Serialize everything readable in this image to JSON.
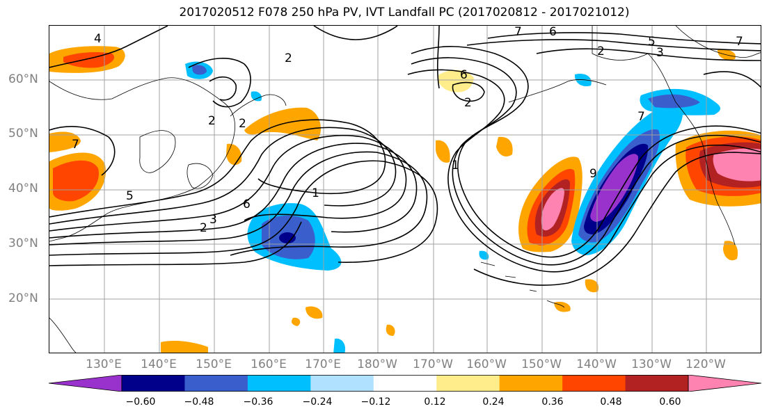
{
  "title": "2017020512 F078 250 hPa PV, IVT Landfall PC (2017020812 - 2017021012)",
  "lat_labels": [
    "60°N",
    "50°N",
    "40°N",
    "30°N",
    "20°N"
  ],
  "lon_labels": [
    "130°E",
    "140°E",
    "150°E",
    "160°E",
    "170°E",
    "180°W",
    "170°W",
    "160°W",
    "150°W",
    "140°W",
    "130°W",
    "120°W"
  ],
  "colorbar": {
    "colors": [
      "#9932cc",
      "#00008b",
      "#3a5fcd",
      "#00bfff",
      "#b0e2ff",
      "#ffffff",
      "#ffec8b",
      "#ffa500",
      "#ff4500",
      "#b22222",
      "#ff83b0"
    ],
    "tick_labels": [
      "−0.60",
      "−0.48",
      "−0.36",
      "−0.24",
      "−0.12",
      "0.12",
      "0.24",
      "0.36",
      "0.48",
      "0.60"
    ]
  },
  "contour_labels": [
    "4",
    "2",
    "6",
    "7",
    "2",
    "5",
    "3",
    "7",
    "2",
    "2",
    "6",
    "2",
    "7",
    "7",
    "1",
    "1",
    "5",
    "6",
    "3",
    "2",
    "9"
  ],
  "colors": {
    "contour": "#000000",
    "grid": "#a0a0a0",
    "coast": "#000000"
  }
}
